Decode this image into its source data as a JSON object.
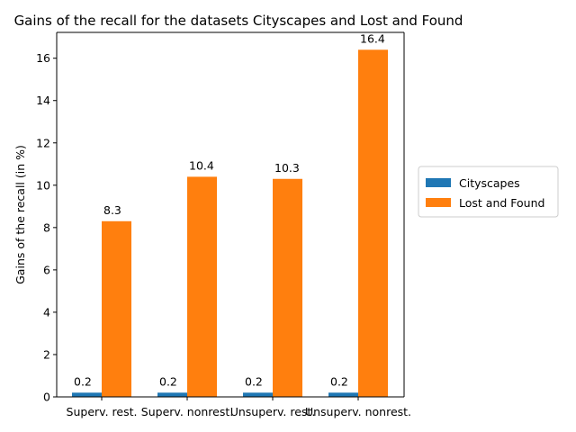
{
  "chart_data": {
    "type": "bar",
    "title": "Gains of the recall for the datasets Cityscapes and Lost and Found",
    "xlabel": "",
    "ylabel": "Gains of the recall (in %)",
    "categories": [
      "Superv. rest.",
      "Superv. nonrest.",
      "Unsuperv. rest.",
      "Unsuperv. nonrest."
    ],
    "series": [
      {
        "name": "Cityscapes",
        "values": [
          0.2,
          0.2,
          0.2,
          0.2
        ],
        "color": "#1f77b4"
      },
      {
        "name": "Lost and Found",
        "values": [
          8.3,
          10.4,
          10.3,
          16.4
        ],
        "color": "#ff7f0e"
      }
    ],
    "ylim": [
      0,
      17.22
    ],
    "yticks": [
      0,
      2,
      4,
      6,
      8,
      10,
      12,
      14,
      16
    ],
    "grid": false,
    "legend_position": "right"
  }
}
